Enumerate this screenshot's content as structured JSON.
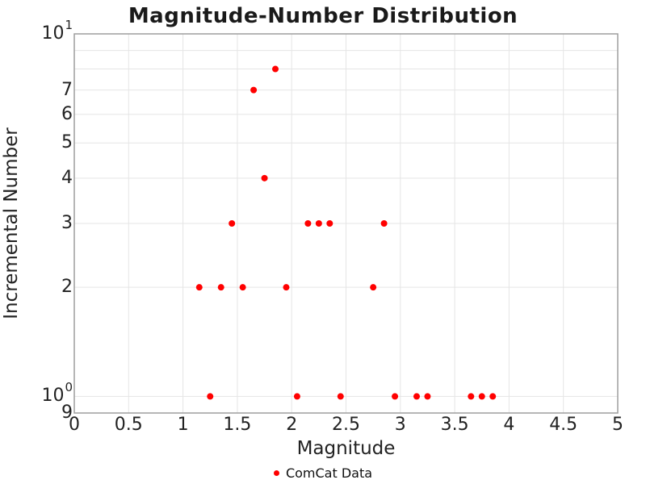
{
  "title": "Magnitude-Number Distribution",
  "colors": {
    "background": "#ffffff",
    "grid": "#e5e5e5",
    "frame": "#9e9e9e",
    "point": "#ff0000",
    "title_text": "#1a1a1a",
    "tick_text": "#222222"
  },
  "legend": {
    "label": "ComCat Data",
    "marker": "red-dot"
  },
  "chart_data": {
    "type": "scatter",
    "title": "Magnitude-Number Distribution",
    "xlabel": "Magnitude",
    "ylabel": "Incremental Number",
    "xlim": [
      0,
      5
    ],
    "ylim": [
      0.9,
      10
    ],
    "yscale": "log",
    "grid": true,
    "legend_position": "bottom-center",
    "x_ticks": [
      {
        "v": 0,
        "label": "0"
      },
      {
        "v": 0.5,
        "label": "0.5"
      },
      {
        "v": 1,
        "label": "1"
      },
      {
        "v": 1.5,
        "label": "1.5"
      },
      {
        "v": 2,
        "label": "2"
      },
      {
        "v": 2.5,
        "label": "2.5"
      },
      {
        "v": 3,
        "label": "3"
      },
      {
        "v": 3.5,
        "label": "3.5"
      },
      {
        "v": 4,
        "label": "4"
      },
      {
        "v": 4.5,
        "label": "4.5"
      },
      {
        "v": 5,
        "label": "5"
      }
    ],
    "y_ticks": [
      {
        "v": 10,
        "base": "10",
        "sup": "1"
      },
      {
        "v": 7,
        "base": "7"
      },
      {
        "v": 6,
        "base": "6"
      },
      {
        "v": 5,
        "base": "5"
      },
      {
        "v": 4,
        "base": "4"
      },
      {
        "v": 3,
        "base": "3"
      },
      {
        "v": 2,
        "base": "2"
      },
      {
        "v": 1,
        "base": "10",
        "sup": "0"
      },
      {
        "v": 0.9,
        "base": "9"
      }
    ],
    "x_grid": [
      0.5,
      1,
      1.5,
      2,
      2.5,
      3,
      3.5,
      4,
      4.5
    ],
    "y_grid": [
      1,
      2,
      3,
      4,
      5,
      6,
      7,
      8,
      9,
      10
    ],
    "series": [
      {
        "name": "ComCat Data",
        "color": "#ff0000",
        "marker": "circle",
        "marker_radius_px": 4,
        "points": [
          [
            1.15,
            2
          ],
          [
            1.25,
            1
          ],
          [
            1.35,
            2
          ],
          [
            1.45,
            3
          ],
          [
            1.55,
            2
          ],
          [
            1.65,
            7
          ],
          [
            1.75,
            4
          ],
          [
            1.85,
            8
          ],
          [
            1.95,
            2
          ],
          [
            2.05,
            1
          ],
          [
            2.15,
            3
          ],
          [
            2.25,
            3
          ],
          [
            2.35,
            3
          ],
          [
            2.45,
            1
          ],
          [
            2.75,
            2
          ],
          [
            2.85,
            3
          ],
          [
            2.95,
            1
          ],
          [
            3.15,
            1
          ],
          [
            3.25,
            1
          ],
          [
            3.65,
            1
          ],
          [
            3.75,
            1
          ],
          [
            3.85,
            1
          ]
        ]
      }
    ]
  }
}
